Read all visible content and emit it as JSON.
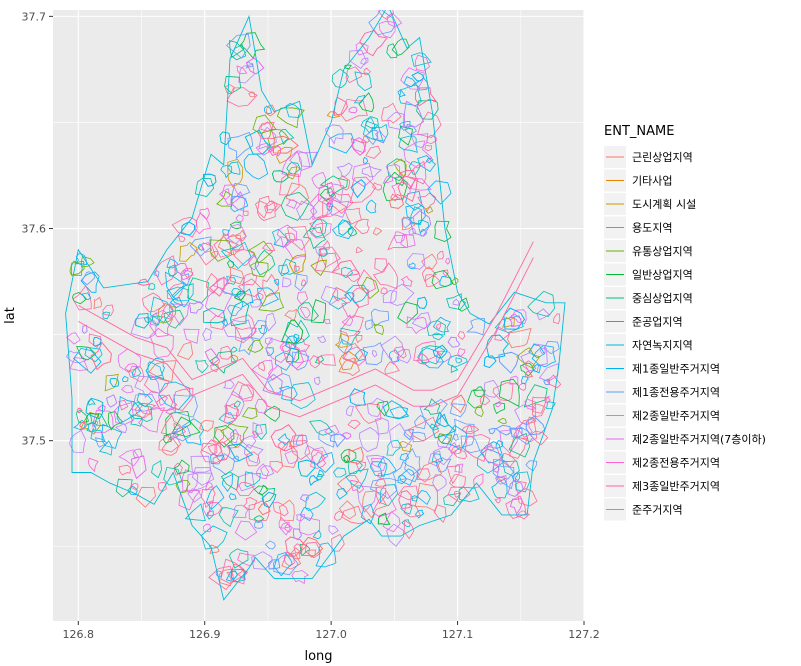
{
  "chart_data": {
    "type": "line",
    "title": "",
    "xlabel": "long",
    "ylabel": "lat",
    "xlim": [
      126.78,
      127.2
    ],
    "ylim": [
      37.415,
      37.703
    ],
    "x_ticks": [
      {
        "value": 126.8,
        "label": "126.8"
      },
      {
        "value": 126.9,
        "label": "126.9"
      },
      {
        "value": 127.0,
        "label": "127.0"
      },
      {
        "value": 127.1,
        "label": "127.1"
      },
      {
        "value": 127.2,
        "label": "127.2"
      }
    ],
    "y_ticks": [
      {
        "value": 37.5,
        "label": "37.5"
      },
      {
        "value": 37.6,
        "label": "37.6"
      },
      {
        "value": 37.7,
        "label": "37.7"
      }
    ],
    "grid": true,
    "panel_background": "#ebebeb",
    "legend": {
      "title": "ENT_NAME",
      "placement": "right",
      "entries": [
        {
          "label": "근린상업지역",
          "color": "#F8766D"
        },
        {
          "label": "기타사업",
          "color": "#E58700"
        },
        {
          "label": "도시계획 시설",
          "color": "#C99800"
        },
        {
          "label": "용도지역",
          "color": "#A3A500"
        },
        {
          "label": "유통상업지역",
          "color": "#6BB100"
        },
        {
          "label": "일반상업지역",
          "color": "#00BA38"
        },
        {
          "label": "중심상업지역",
          "color": "#00BF7D"
        },
        {
          "label": "준공업지역",
          "color": "#00C0AF"
        },
        {
          "label": "자연녹지지역",
          "color": "#00BCD8"
        },
        {
          "label": "제1종일반주거지역",
          "color": "#00B0F6"
        },
        {
          "label": "제1종전용주거지역",
          "color": "#619CFF"
        },
        {
          "label": "제2종일반주거지역",
          "color": "#B983FF"
        },
        {
          "label": "제2종일반주거지역(7층이하)",
          "color": "#E76BF3"
        },
        {
          "label": "제2종전용주거지역",
          "color": "#FD61D1"
        },
        {
          "label": "제3종일반주거지역",
          "color": "#FF67A4"
        },
        {
          "label": "준주거지역",
          "color": "#FF6C91"
        }
      ]
    },
    "outline": [
      [
        126.8,
        37.59
      ],
      [
        126.82,
        37.572
      ],
      [
        126.855,
        37.575
      ],
      [
        126.87,
        37.59
      ],
      [
        126.89,
        37.605
      ],
      [
        126.905,
        37.635
      ],
      [
        126.915,
        37.63
      ],
      [
        126.92,
        37.68
      ],
      [
        126.935,
        37.7
      ],
      [
        126.945,
        37.665
      ],
      [
        126.955,
        37.655
      ],
      [
        126.975,
        37.66
      ],
      [
        126.985,
        37.63
      ],
      [
        127.0,
        37.65
      ],
      [
        127.01,
        37.675
      ],
      [
        127.03,
        37.69
      ],
      [
        127.045,
        37.705
      ],
      [
        127.06,
        37.685
      ],
      [
        127.07,
        37.69
      ],
      [
        127.08,
        37.655
      ],
      [
        127.09,
        37.6
      ],
      [
        127.1,
        37.57
      ],
      [
        127.11,
        37.56
      ],
      [
        127.125,
        37.555
      ],
      [
        127.145,
        37.57
      ],
      [
        127.17,
        37.565
      ],
      [
        127.185,
        37.565
      ],
      [
        127.18,
        37.535
      ],
      [
        127.175,
        37.515
      ],
      [
        127.16,
        37.49
      ],
      [
        127.155,
        37.465
      ],
      [
        127.135,
        37.465
      ],
      [
        127.115,
        37.48
      ],
      [
        127.095,
        37.465
      ],
      [
        127.07,
        37.46
      ],
      [
        127.055,
        37.455
      ],
      [
        127.04,
        37.455
      ],
      [
        127.03,
        37.463
      ],
      [
        127.01,
        37.455
      ],
      [
        126.985,
        37.435
      ],
      [
        126.955,
        37.435
      ],
      [
        126.94,
        37.445
      ],
      [
        126.935,
        37.44
      ],
      [
        126.915,
        37.425
      ],
      [
        126.905,
        37.45
      ],
      [
        126.89,
        37.46
      ],
      [
        126.875,
        37.485
      ],
      [
        126.86,
        37.47
      ],
      [
        126.845,
        37.475
      ],
      [
        126.825,
        37.48
      ],
      [
        126.81,
        37.485
      ],
      [
        126.795,
        37.485
      ],
      [
        126.795,
        37.52
      ],
      [
        126.79,
        37.56
      ],
      [
        126.795,
        37.575
      ]
    ],
    "river": [
      [
        126.8,
        37.56
      ],
      [
        126.845,
        37.545
      ],
      [
        126.87,
        37.54
      ],
      [
        126.89,
        37.525
      ],
      [
        126.91,
        37.53
      ],
      [
        126.93,
        37.535
      ],
      [
        126.95,
        37.52
      ],
      [
        126.975,
        37.515
      ],
      [
        126.995,
        37.52
      ],
      [
        127.015,
        37.525
      ],
      [
        127.035,
        37.53
      ],
      [
        127.05,
        37.525
      ],
      [
        127.065,
        37.52
      ],
      [
        127.08,
        37.52
      ],
      [
        127.1,
        37.525
      ],
      [
        127.13,
        37.555
      ],
      [
        127.16,
        37.59
      ]
    ]
  }
}
